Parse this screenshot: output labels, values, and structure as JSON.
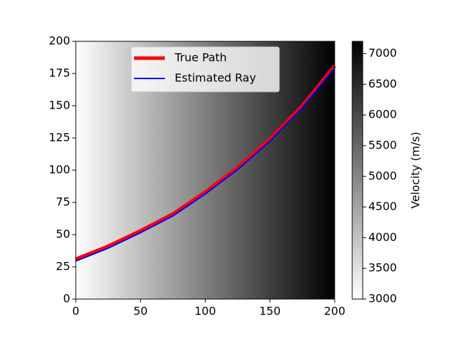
{
  "chart_data": {
    "type": "line",
    "x": [
      0,
      25,
      50,
      75,
      100,
      125,
      150,
      175,
      200
    ],
    "series": [
      {
        "name": "True Path",
        "color": "#ff0000",
        "linewidth": 5,
        "values": [
          31,
          41,
          53,
          66,
          83,
          102,
          124,
          150,
          181
        ]
      },
      {
        "name": "Estimated Ray",
        "color": "#0000ff",
        "linewidth": 2,
        "values": [
          29.5,
          39.5,
          51.5,
          64.5,
          81.5,
          100.5,
          122.5,
          148.5,
          179.5
        ]
      }
    ],
    "xlim": [
      0,
      200
    ],
    "ylim": [
      0,
      200
    ],
    "xticks": [
      0,
      50,
      100,
      150,
      200
    ],
    "yticks": [
      0,
      25,
      50,
      75,
      100,
      125,
      150,
      175,
      200
    ],
    "legend": "upper center",
    "colorbar": {
      "label": "Velocity (m/s)",
      "lim": [
        3000,
        7200
      ],
      "cmap": [
        "#ffffff",
        "#000000"
      ],
      "ticks": [
        3000,
        3500,
        4000,
        4500,
        5000,
        5500,
        6000,
        6500,
        7000
      ]
    }
  }
}
